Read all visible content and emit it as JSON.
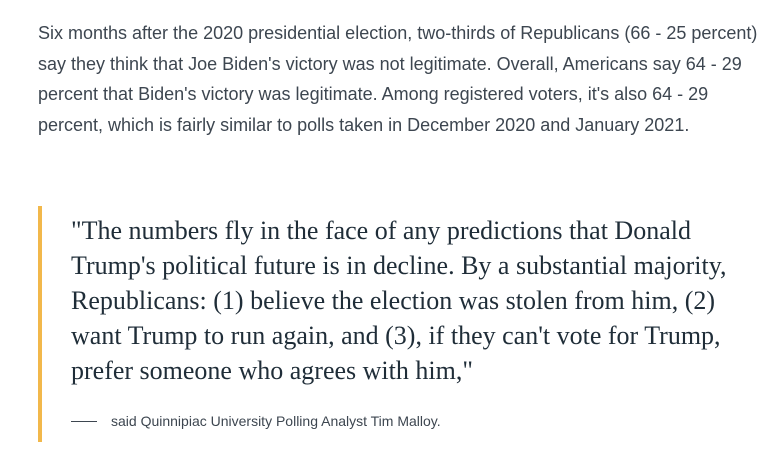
{
  "article": {
    "intro_paragraph": "Six months after the 2020 presidential election, two-thirds of Republicans (66 - 25 percent) say they think that Joe Biden's victory was not legitimate. Overall, Americans say 64 - 29 percent that Biden's victory was legitimate. Among registered voters, it's also 64 - 29 percent, which is fairly similar to polls taken in December 2020 and January 2021."
  },
  "quote": {
    "text": "\"The numbers fly in the face of any predictions that Donald Trump's political future is in decline. By a substantial majority, Republicans: (1) believe the election was stolen from him, (2) want Trump to run again, and (3), if they can't vote for Trump, prefer someone who agrees with him,\"",
    "attribution": "said Quinnipiac University Polling Analyst Tim Malloy.",
    "accent_color": "#f2b84b"
  }
}
